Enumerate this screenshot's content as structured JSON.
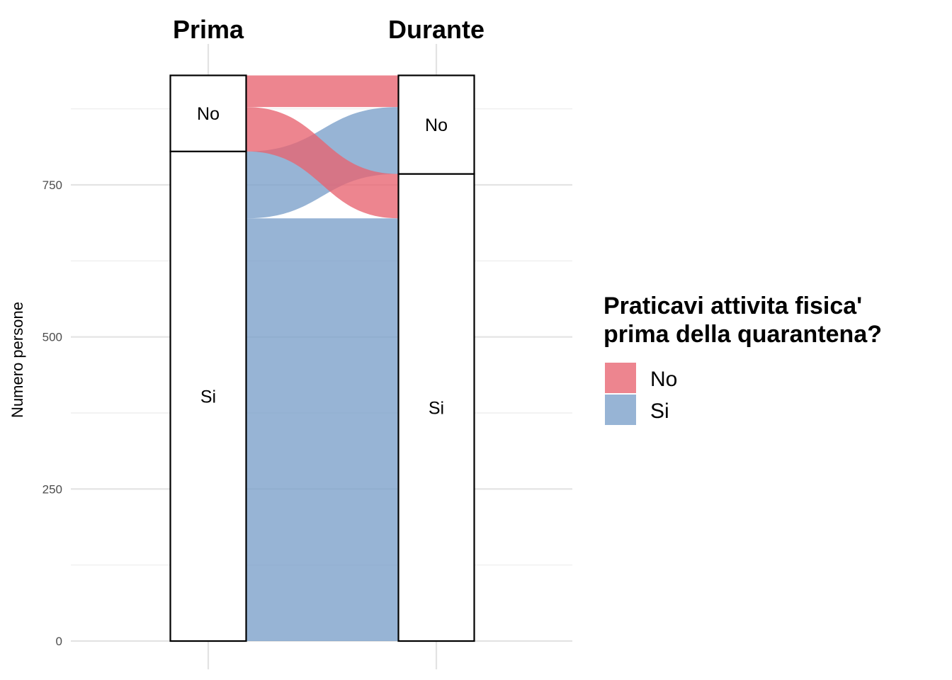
{
  "chart_data": {
    "type": "alluvial",
    "axes": [
      "Prima",
      "Durante"
    ],
    "ylabel": "Numero persone",
    "ylim": [
      0,
      930
    ],
    "yticks": [
      0,
      250,
      500,
      750
    ],
    "grid": true,
    "strata": {
      "Prima": [
        {
          "label": "Si",
          "value": 805
        },
        {
          "label": "No",
          "value": 125
        }
      ],
      "Durante": [
        {
          "label": "Si",
          "value": 768
        },
        {
          "label": "No",
          "value": 162
        }
      ]
    },
    "flows": [
      {
        "group": "Si",
        "from": "Si",
        "to": "Si",
        "value": 695
      },
      {
        "group": "Si",
        "from": "Si",
        "to": "No",
        "value": 110
      },
      {
        "group": "No",
        "from": "No",
        "to": "Si",
        "value": 73
      },
      {
        "group": "No",
        "from": "No",
        "to": "No",
        "value": 52
      }
    ],
    "legend": {
      "title_lines": [
        "Praticavi attivita fisica'",
        "prima della quarantena?"
      ],
      "position": "right",
      "entries": [
        {
          "label": "No",
          "color": "#E8636F"
        },
        {
          "label": "Si",
          "color": "#7A9FC9"
        }
      ]
    }
  }
}
